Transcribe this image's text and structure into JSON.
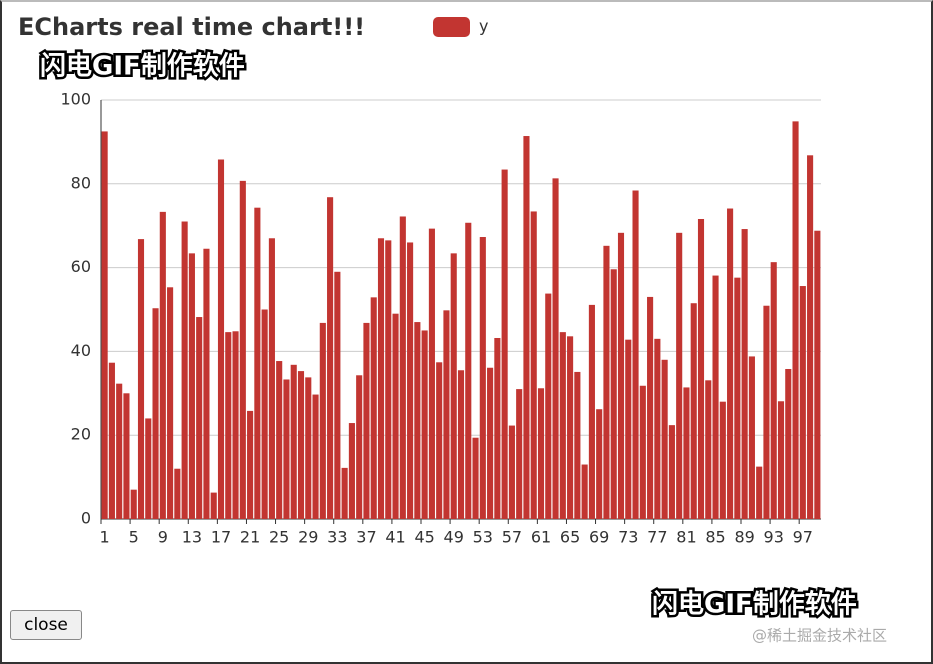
{
  "chart_data": {
    "type": "bar",
    "title": "ECharts real time chart!!!",
    "legend": "y",
    "color": "#c23531",
    "categories": [
      1,
      null,
      null,
      null,
      5,
      null,
      null,
      null,
      9,
      null,
      null,
      null,
      13,
      null,
      null,
      null,
      17,
      null,
      null,
      null,
      21,
      null,
      null,
      null,
      25,
      null,
      null,
      null,
      29,
      null,
      null,
      null,
      33,
      null,
      null,
      null,
      37,
      null,
      null,
      null,
      41,
      null,
      null,
      null,
      45,
      null,
      null,
      null,
      49,
      null,
      null,
      null,
      53,
      null,
      null,
      null,
      57,
      null,
      null,
      null,
      61,
      null,
      null,
      null,
      65,
      null,
      null,
      null,
      69,
      null,
      null,
      null,
      73,
      null,
      null,
      null,
      77,
      null,
      null,
      null,
      81,
      null,
      null,
      null,
      85,
      null,
      null,
      null,
      89,
      null,
      null,
      null,
      93,
      null,
      null,
      null,
      97,
      null,
      null
    ],
    "values": [
      92.5,
      37.3,
      32.3,
      30,
      7,
      66.8,
      24,
      50.3,
      73.3,
      55.3,
      12,
      71,
      63.4,
      48.2,
      64.5,
      6.3,
      85.8,
      44.6,
      44.8,
      80.7,
      25.8,
      74.3,
      50,
      67,
      37.7,
      33.3,
      36.8,
      35.3,
      33.8,
      29.7,
      46.8,
      76.8,
      59,
      12.2,
      22.9,
      34.3,
      46.8,
      52.9,
      67,
      66.5,
      49,
      72.2,
      66,
      47,
      45,
      69.3,
      37.4,
      49.8,
      63.4,
      35.5,
      70.7,
      19.4,
      67.3,
      36.1,
      43.2,
      83.4,
      22.3,
      31,
      91.4,
      73.4,
      31.2,
      53.8,
      81.3,
      44.6,
      43.6,
      35.1,
      13,
      51.1,
      26.2,
      65.2,
      59.6,
      68.3,
      42.8,
      78.4,
      31.8,
      53,
      43,
      38,
      22.4,
      68.3,
      31.4,
      51.5,
      71.6,
      33.1,
      58.1,
      28,
      74.1,
      57.6,
      69.2,
      38.8,
      12.5,
      50.9,
      61.3,
      28.1,
      35.8,
      94.9,
      55.6,
      86.8,
      68.8
    ],
    "ylim": [
      0,
      100
    ],
    "yticks": [
      0,
      20,
      40,
      60,
      80,
      100
    ],
    "grid": true
  },
  "close_button": "close",
  "watermarks": [
    "闪电GIF制作软件",
    "闪电GIF制作软件",
    "@稀土掘金技术社区"
  ]
}
